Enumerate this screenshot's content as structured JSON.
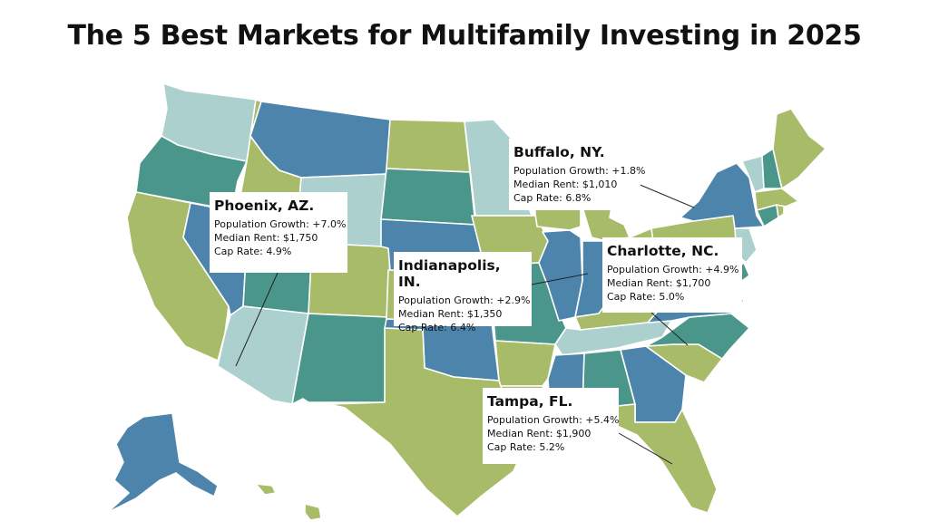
{
  "title": "The 5 Best Markets for Multifamily Investing in 2025",
  "colors": {
    "blue": "#4d84ab",
    "teal": "#4a968b",
    "green": "#a8bb69",
    "light": "#abd0cd"
  },
  "markets": [
    {
      "city": "Buffalo, NY.",
      "population": "Population Growth: +1.8%",
      "rent": "Median Rent: $1,010",
      "cap": "Cap Rate: 6.8%"
    },
    {
      "city": "Phoenix, AZ.",
      "population": "Population Growth: +7.0%",
      "rent": "Median Rent: $1,750",
      "cap": "Cap Rate: 4.9%"
    },
    {
      "city": "Indianapolis, IN.",
      "population": "Population Growth: +2.9%",
      "rent": "Median Rent: $1,350",
      "cap": "Cap Rate: 6.4%"
    },
    {
      "city": "Charlotte, NC.",
      "population": "Population Growth: +4.9%",
      "rent": "Median Rent: $1,700",
      "cap": "Cap Rate: 5.0%"
    },
    {
      "city": "Tampa, FL.",
      "population": "Population Growth: +5.4%",
      "rent": "Median Rent: $1,900",
      "cap": "Cap Rate: 5.2%"
    }
  ]
}
